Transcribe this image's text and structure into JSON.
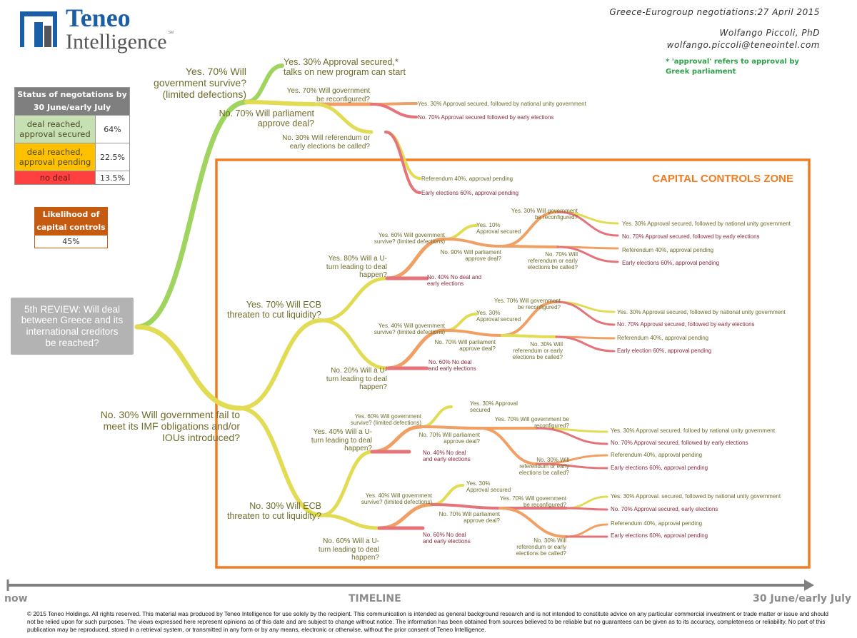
{
  "header": {
    "logo_line1": "Teneo",
    "logo_line2": "Intelligence",
    "logo_mark": "SM",
    "title": "Greece-Eurogroup negotiations:27 April 2015",
    "author": "Wolfango Piccoli, PhD",
    "email": "wolfango.piccoli@teneointel.com",
    "footnote": "* 'approval' refers to approval by\nGreek parliament"
  },
  "status_table": {
    "title": "Status of negotations by\n30 June/early July",
    "rows": [
      {
        "label": "deal reached,\napproval secured",
        "value": "64%",
        "color": "#c6e0b4"
      },
      {
        "label": "deal reached,\napproval pending",
        "value": "22.5%",
        "color": "#ffc000"
      },
      {
        "label": "no deal",
        "value": "13.5%",
        "color": "#ff4040"
      }
    ]
  },
  "capital_controls": {
    "title": "Likelihood of\ncapital controls",
    "value": "45%"
  },
  "zone_label": "CAPITAL CONTROLS ZONE",
  "root": "5th REVIEW: Will deal\nbetween Greece and its\ninternational creditors\nbe reached?",
  "labels": [
    "Yes. 70% Will\ngovernment survive?\n(limited defections)",
    "Yes. 30% Approval secured,*\ntalks on new program can start",
    "Yes. 70% Will government\nbe reconfigured?",
    "No. 70% Will parliament\napprove deal?",
    "No. 30% Will referendum or\nearly elections be called?",
    "Yes. 30% Approval secured, followed by national unity government",
    "No. 70% Approval secured followed by early elections",
    "Referendum 40%, approval pending",
    "Early elections 60%, approval pending",
    "No. 30% Will government fail to\nmeet its IMF obligations and/or\nIOUs introduced?",
    "Yes. 70% Will ECB\nthreaten to cut liquidity?",
    "No. 30% Will ECB\nthreaten to cut liquidity?",
    "Yes. 80% Will a U-\nturn leading to deal\nhappen?",
    "Yes. 60% Will government\nsurvive? (limited defections)",
    "Yes. 10%\nApproval secured",
    "No. 40% No deal and\nearly elections",
    "No. 90% Will parliament\napprove deal?",
    "Yes. 30% Will government\nbe reconfigured?",
    "No. 70% Will\nreferendum or early\nelections be called?",
    "Yes. 30% Approval secured, followed by national unity government",
    "No. 70% Approval secured, followed by early elections",
    "Referendum 40%, approval pending",
    "Early elections 60%, approval pending",
    "No. 20% Will a U-\nturn leading to deal\nhappen?",
    "Yes. 40% Will government\nsurvive? (limited defections)",
    "Yes. 30%\nApproval secured",
    "No. 60% No deal\nand early elections",
    "No. 70% Will parliament\napprove deal?",
    "Yes. 70% Will government\nbe reconfigured?",
    "No. 30% Will\nreferendum or early\nelections be called?",
    "Yes. 30% Approval secured, followed by national unity government",
    "No. 70% Approval secured, followed by early elections",
    "Referendum 40%, approval pending",
    "Early election 60%, approval pending",
    "Yes. 40% Will a U-\nturn leading to deal\nhappen?",
    "Yes. 60% Will government\nsurvive? (limited defections)",
    "Yes. 30% Approval\nsecured",
    "No. 70% Will parliament\napprove deal?",
    "Yes. 70% Will government be\nreconfigured?",
    "No. 40% No deal\nand early elections",
    "No. 30% Will\nreferendum or early\nelections be called?",
    "Yes. 30% Approval secured, folloed by national unity government",
    "No. 70% Approval secured, followed by early elections",
    "Referendum 40%, approval pending",
    "Early elections 60%, approval pending",
    "No. 60% Will a U-\nturn leading to deal\nhappen?",
    "Yes. 40% Will government\nsurvive? (limited defections)",
    "Yes. 30%\nApproval secured",
    "No. 70% Will parliament\napprove deal?",
    "Yes. 70% Will government\nbe reconfigured?",
    "No. 60% No deal\nand early elections",
    "No. 30% Will\nreferendum or early\nelections be called?",
    "Yes. 30% Approval. secured, followed by national unity government",
    "No. 70% Approval secured, early elections",
    "Referendum 40%, approval pending",
    "Early elections 60%, approval pending"
  ],
  "colors": {
    "green": "#9fd45f",
    "yellow": "#e2dc55",
    "orange": "#f0a064",
    "red": "#e5737a",
    "zone": "#f47c20",
    "brand": "#1b5ea8"
  },
  "timeline": {
    "start": "now",
    "label": "TIMELINE",
    "end": "30 June/early July"
  },
  "footer": "© 2015 Teneo Holdings. All rights reserved. This material was produced by Teneo Intelligence for use solely by the recipient. This communication is intended as general background research and is not intended to constitute advice on any particular commercial investment or trade matter or issue and should not be relied upon for such purposes. The views expressed here represent opinions as of this date and are subject to change without notice. The information has been obtained from sources believed to be reliable but no guarantees can be given as to its accuracy, completeness or reliability. No part of this publication may be reproduced, stored in a retrieval system, or transmitted in any form or by any means, electronic or otherwise, without the prior consent of Teneo Intelligence."
}
